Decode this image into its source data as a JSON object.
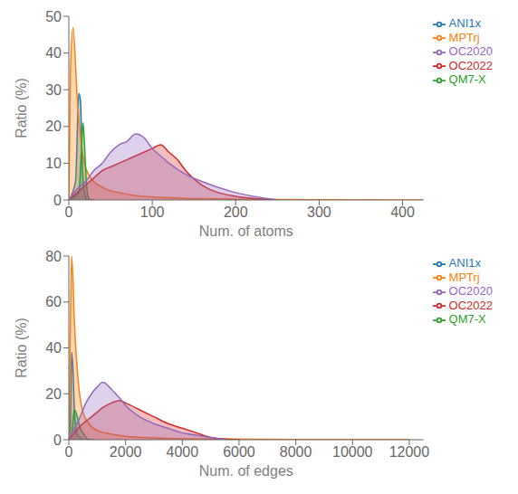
{
  "chart_data": [
    {
      "type": "area",
      "xlabel": "Num. of atoms",
      "ylabel": "Ratio (%)",
      "xlim": [
        0,
        425
      ],
      "ylim": [
        0,
        50
      ],
      "xticks": [
        0,
        100,
        200,
        300,
        400
      ],
      "yticks": [
        0,
        10,
        20,
        30,
        40,
        50
      ],
      "grid": false,
      "legend": "upper right",
      "series": [
        {
          "name": "ANI1x",
          "color": "#1f77b4",
          "x": [
            0,
            8,
            12,
            14,
            16,
            18,
            20,
            22,
            25,
            30
          ],
          "values": [
            0,
            5,
            29,
            27,
            10,
            3,
            1,
            0,
            0,
            0
          ]
        },
        {
          "name": "MPTrj",
          "color": "#ff7f0e",
          "x": [
            0,
            2,
            5,
            10,
            15,
            20,
            30,
            40,
            50,
            60,
            80,
            100,
            150,
            200,
            300,
            425
          ],
          "values": [
            0,
            35,
            47,
            28,
            15,
            9,
            5,
            3.5,
            2.5,
            2,
            1.2,
            0.8,
            0.4,
            0.2,
            0.05,
            0.02
          ]
        },
        {
          "name": "QM7-X",
          "color": "#2ca02c",
          "x": [
            0,
            12,
            15,
            17,
            19,
            21,
            23,
            26,
            30
          ],
          "values": [
            0,
            2,
            13,
            21,
            14,
            5,
            1,
            0,
            0
          ]
        },
        {
          "name": "OC2022",
          "color": "#d62728",
          "x": [
            0,
            10,
            20,
            30,
            40,
            50,
            60,
            70,
            80,
            90,
            100,
            110,
            120,
            130,
            140,
            160,
            200,
            250
          ],
          "values": [
            0,
            2,
            4,
            6,
            8,
            9,
            10,
            11,
            12,
            13,
            14,
            15,
            13,
            11,
            8,
            4,
            1,
            0
          ]
        },
        {
          "name": "OC2020",
          "color": "#9467bd",
          "x": [
            0,
            10,
            20,
            30,
            40,
            50,
            60,
            70,
            80,
            90,
            100,
            110,
            120,
            140,
            160,
            200,
            250
          ],
          "values": [
            0,
            3,
            5,
            8,
            10,
            13,
            15,
            16,
            18,
            17,
            14,
            12,
            10,
            7,
            5,
            2,
            0
          ]
        }
      ]
    },
    {
      "type": "area",
      "xlabel": "Num. of edges",
      "ylabel": "Ratio (%)",
      "xlim": [
        0,
        12500
      ],
      "ylim": [
        0,
        80
      ],
      "xticks": [
        0,
        2000,
        4000,
        6000,
        8000,
        10000,
        12000
      ],
      "yticks": [
        0,
        20,
        40,
        60,
        80
      ],
      "grid": false,
      "legend": "upper right",
      "series": [
        {
          "name": "ANI1x",
          "color": "#1f77b4",
          "x": [
            0,
            50,
            100,
            150,
            200,
            250,
            300,
            400,
            500,
            600,
            700,
            800
          ],
          "values": [
            0,
            5,
            38,
            30,
            12,
            5,
            2,
            1,
            0,
            0,
            0,
            0
          ]
        },
        {
          "name": "MPTrj",
          "color": "#ff7f0e",
          "x": [
            0,
            50,
            100,
            200,
            300,
            400,
            500,
            700,
            1000,
            1500,
            2000,
            3000,
            5000,
            8000,
            12000
          ],
          "values": [
            0,
            45,
            80,
            50,
            30,
            18,
            12,
            7,
            4,
            2.5,
            1.5,
            0.8,
            0.3,
            0.1,
            0.05
          ]
        },
        {
          "name": "QM7-X",
          "color": "#2ca02c",
          "x": [
            0,
            100,
            200,
            300,
            400,
            500,
            600,
            700,
            800,
            900
          ],
          "values": [
            0,
            3,
            13,
            10,
            5,
            3,
            1,
            0,
            0,
            0
          ]
        },
        {
          "name": "OC2022",
          "color": "#d62728",
          "x": [
            0,
            200,
            400,
            600,
            800,
            1000,
            1200,
            1500,
            1800,
            2000,
            2500,
            3000,
            3500,
            4000,
            4500,
            5000,
            6000
          ],
          "values": [
            0,
            3,
            6,
            8,
            10,
            12,
            14,
            16,
            17,
            16,
            13,
            10,
            7,
            5,
            3,
            1,
            0
          ]
        },
        {
          "name": "OC2020",
          "color": "#9467bd",
          "x": [
            0,
            200,
            400,
            600,
            800,
            1000,
            1200,
            1500,
            1800,
            2000,
            2500,
            3000,
            3500,
            4000,
            4500,
            5000,
            5500
          ],
          "values": [
            0,
            5,
            10,
            16,
            20,
            23,
            25,
            22,
            18,
            15,
            10,
            7,
            5,
            3,
            2,
            1,
            0
          ]
        }
      ]
    }
  ]
}
